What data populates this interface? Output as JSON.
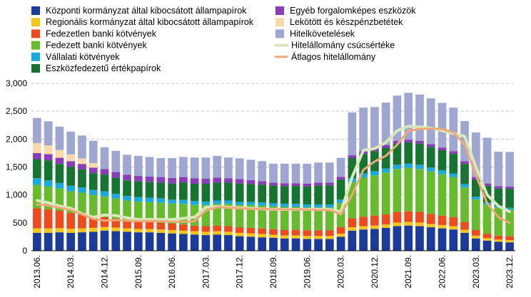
{
  "chart_data": {
    "type": "bar",
    "stacked": true,
    "title": "",
    "xlabel": "",
    "ylabel": "",
    "ylim": [
      0,
      3000
    ],
    "yticks": [
      "0",
      "500",
      "1,000",
      "1,500",
      "2,000",
      "2,500",
      "3,000"
    ],
    "grid": "horizontal-dashed",
    "legend_placement": "top",
    "x_tick_labels": [
      "2013.06.",
      "2014.03.",
      "2014.12.",
      "2015.09.",
      "2016.06.",
      "2017.03.",
      "2017.12.",
      "2018.09.",
      "2019.06.",
      "2020.03.",
      "2020.12.",
      "2021.09.",
      "2022.06.",
      "2023.03.",
      "2023.12."
    ],
    "categories": [
      "2013.06.",
      "2013.09.",
      "2013.12.",
      "2014.03.",
      "2014.06.",
      "2014.09.",
      "2014.12.",
      "2015.03.",
      "2015.06.",
      "2015.09.",
      "2015.12.",
      "2016.03.",
      "2016.06.",
      "2016.09.",
      "2016.12.",
      "2017.03.",
      "2017.06.",
      "2017.09.",
      "2017.12.",
      "2018.03.",
      "2018.06.",
      "2018.09.",
      "2018.12.",
      "2019.03.",
      "2019.06.",
      "2019.09.",
      "2019.12.",
      "2020.03.",
      "2020.06.",
      "2020.09.",
      "2020.12.",
      "2021.03.",
      "2021.06.",
      "2021.09.",
      "2021.12.",
      "2022.03.",
      "2022.06.",
      "2022.09.",
      "2022.12.",
      "2023.03.",
      "2023.06.",
      "2023.09.",
      "2023.12."
    ],
    "series": [
      {
        "name": "Központi kormányzat által kibocsátott állampapírok",
        "kind": "bar",
        "color": "#1a3a9c",
        "values": [
          320,
          320,
          330,
          320,
          330,
          340,
          360,
          350,
          340,
          330,
          330,
          320,
          310,
          300,
          290,
          280,
          290,
          280,
          260,
          250,
          240,
          230,
          220,
          220,
          210,
          210,
          210,
          250,
          360,
          380,
          390,
          410,
          440,
          450,
          440,
          420,
          400,
          380,
          320,
          220,
          180,
          160,
          150
        ]
      },
      {
        "name": "Regionális kormányzat által kibocsátott állampapírok",
        "kind": "bar",
        "color": "#f5c518",
        "values": [
          80,
          80,
          75,
          75,
          70,
          70,
          65,
          65,
          60,
          60,
          60,
          60,
          60,
          60,
          60,
          60,
          60,
          60,
          60,
          60,
          60,
          55,
          55,
          55,
          55,
          55,
          55,
          55,
          60,
          60,
          60,
          60,
          65,
          65,
          65,
          60,
          60,
          60,
          55,
          50,
          45,
          40,
          40
        ]
      },
      {
        "name": "Fedezetlen banki kötvények",
        "kind": "bar",
        "color": "#ee4a1b",
        "values": [
          360,
          340,
          310,
          280,
          250,
          200,
          180,
          160,
          140,
          130,
          120,
          120,
          115,
          110,
          100,
          100,
          100,
          100,
          100,
          100,
          100,
          100,
          100,
          100,
          100,
          100,
          100,
          120,
          160,
          170,
          180,
          180,
          190,
          190,
          190,
          180,
          170,
          160,
          140,
          100,
          80,
          70,
          70
        ]
      },
      {
        "name": "Fedezett banki kötvények",
        "kind": "bar",
        "color": "#66bb2a",
        "values": [
          420,
          410,
          400,
          390,
          390,
          390,
          370,
          360,
          360,
          360,
          360,
          360,
          360,
          370,
          370,
          380,
          390,
          400,
          400,
          410,
          410,
          410,
          410,
          410,
          410,
          410,
          410,
          430,
          650,
          700,
          720,
          750,
          770,
          780,
          770,
          760,
          740,
          720,
          620,
          550,
          520,
          500,
          480
        ]
      },
      {
        "name": "Vállalati kötvények",
        "kind": "bar",
        "color": "#19a9df",
        "values": [
          120,
          110,
          100,
          100,
          95,
          90,
          90,
          85,
          80,
          80,
          80,
          80,
          70,
          70,
          70,
          60,
          60,
          60,
          55,
          55,
          55,
          55,
          55,
          55,
          55,
          55,
          55,
          60,
          70,
          75,
          75,
          75,
          75,
          75,
          75,
          70,
          70,
          65,
          60,
          50,
          40,
          35,
          30
        ]
      },
      {
        "name": "Eszközfedezetű értékpapírok",
        "kind": "bar",
        "color": "#15742f",
        "values": [
          340,
          360,
          340,
          340,
          320,
          300,
          300,
          290,
          280,
          280,
          280,
          280,
          290,
          310,
          310,
          320,
          320,
          320,
          330,
          320,
          320,
          320,
          320,
          320,
          320,
          340,
          340,
          360,
          360,
          350,
          360,
          370,
          380,
          380,
          380,
          370,
          360,
          350,
          360,
          300,
          300,
          310,
          340
        ]
      },
      {
        "name": "Egyéb forgalomképes eszközök",
        "kind": "bar",
        "color": "#8a3db8",
        "values": [
          110,
          110,
          110,
          100,
          100,
          100,
          100,
          100,
          100,
          100,
          100,
          100,
          100,
          100,
          100,
          90,
          90,
          80,
          80,
          70,
          60,
          50,
          50,
          50,
          50,
          50,
          50,
          50,
          50,
          50,
          50,
          50,
          50,
          50,
          50,
          50,
          50,
          50,
          50,
          50,
          40,
          40,
          40
        ]
      },
      {
        "name": "Lekötött és készpénzbetétek",
        "kind": "bar",
        "color": "#fad9a8",
        "values": [
          180,
          160,
          140,
          120,
          100,
          80,
          0,
          0,
          0,
          0,
          0,
          0,
          0,
          0,
          0,
          0,
          0,
          0,
          0,
          0,
          0,
          0,
          0,
          0,
          0,
          0,
          0,
          0,
          0,
          0,
          0,
          0,
          0,
          0,
          0,
          0,
          0,
          0,
          0,
          0,
          0,
          0,
          0
        ]
      },
      {
        "name": "Hitelkövetelések",
        "kind": "bar",
        "color": "#9ea6d2",
        "values": [
          450,
          430,
          420,
          410,
          410,
          400,
          390,
          380,
          360,
          360,
          350,
          340,
          355,
          360,
          370,
          380,
          390,
          370,
          370,
          365,
          360,
          340,
          350,
          350,
          360,
          360,
          360,
          340,
          770,
          780,
          740,
          760,
          810,
          840,
          830,
          820,
          800,
          780,
          720,
          800,
          820,
          620,
          620
        ]
      },
      {
        "name": "Hitelállomány csúcsértéke",
        "kind": "line",
        "color": "#d7e8bb",
        "width": 4,
        "values": [
          900,
          860,
          800,
          760,
          660,
          600,
          640,
          630,
          590,
          560,
          560,
          560,
          560,
          580,
          600,
          780,
          790,
          780,
          770,
          760,
          750,
          740,
          740,
          740,
          740,
          740,
          740,
          700,
          1320,
          1800,
          1830,
          1940,
          2150,
          2230,
          2220,
          2200,
          2150,
          2100,
          2050,
          1500,
          1000,
          800,
          700
        ]
      },
      {
        "name": "Átlagos hitelállomány",
        "kind": "line",
        "color": "#f0a878",
        "width": 3,
        "values": [
          830,
          810,
          770,
          730,
          650,
          570,
          540,
          550,
          540,
          530,
          530,
          530,
          520,
          520,
          530,
          720,
          780,
          770,
          760,
          750,
          750,
          740,
          740,
          740,
          740,
          730,
          730,
          650,
          1000,
          1450,
          1600,
          1700,
          1900,
          2150,
          2180,
          2190,
          2180,
          2120,
          1900,
          1350,
          850,
          600,
          500
        ]
      }
    ]
  }
}
